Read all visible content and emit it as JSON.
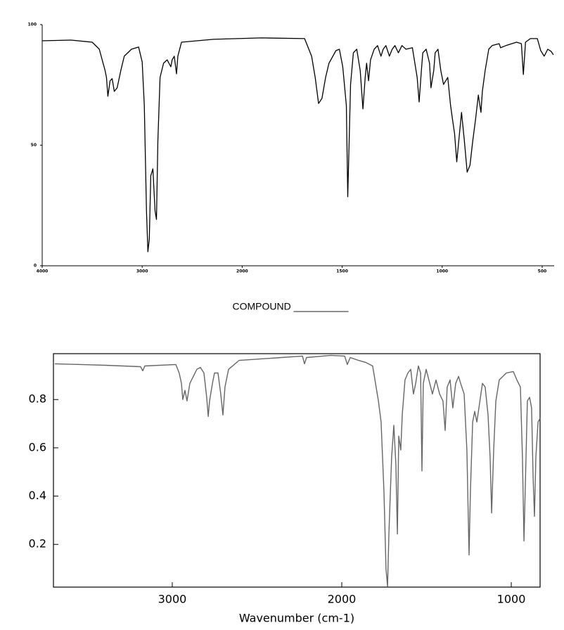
{
  "caption": "COMPOUND __________",
  "chart_data": [
    {
      "type": "line",
      "color": "#000000",
      "xlim": [
        4000,
        440
      ],
      "x_scale_break": 2000,
      "ylim": [
        0,
        100
      ],
      "xticks": [
        4000,
        3000,
        2000,
        1500,
        1000,
        500
      ],
      "yticks": [
        0,
        50,
        100
      ],
      "x": [
        4000,
        3714,
        3500,
        3429,
        3371,
        3357,
        3343,
        3321,
        3300,
        3279,
        3250,
        3214,
        3179,
        3107,
        3036,
        3000,
        2979,
        2957,
        2943,
        2929,
        2914,
        2893,
        2871,
        2857,
        2843,
        2821,
        2786,
        2750,
        2714,
        2700,
        2679,
        2657,
        2643,
        2607,
        2286,
        1902,
        1688,
        1653,
        1635,
        1618,
        1601,
        1583,
        1566,
        1531,
        1514,
        1497,
        1479,
        1472,
        1465,
        1458,
        1444,
        1427,
        1410,
        1396,
        1385,
        1378,
        1368,
        1358,
        1340,
        1323,
        1306,
        1295,
        1281,
        1264,
        1250,
        1236,
        1219,
        1201,
        1181,
        1149,
        1125,
        1115,
        1104,
        1097,
        1080,
        1063,
        1056,
        1042,
        1035,
        1021,
        1007,
        993,
        972,
        958,
        948,
        938,
        927,
        917,
        903,
        889,
        875,
        861,
        847,
        833,
        819,
        806,
        799,
        785,
        767,
        750,
        715,
        708,
        681,
        628,
        604,
        594,
        583,
        559,
        524,
        507,
        490,
        472,
        455,
        444
      ],
      "values": [
        93.3,
        93.6,
        92.7,
        89.8,
        81.0,
        78.1,
        70.3,
        76.7,
        77.6,
        72.3,
        73.8,
        81.0,
        86.9,
        89.8,
        90.7,
        84.5,
        66.5,
        22.7,
        5.8,
        11.1,
        37.3,
        40.2,
        22.7,
        19.2,
        51.9,
        78.1,
        84.0,
        85.4,
        82.5,
        85.4,
        86.9,
        79.6,
        86.9,
        92.7,
        93.9,
        94.5,
        94.2,
        86.9,
        78.1,
        67.3,
        69.4,
        78.1,
        84.0,
        89.2,
        89.8,
        82.5,
        66.5,
        28.6,
        51.9,
        75.2,
        88.3,
        89.8,
        81.0,
        65.0,
        78.1,
        84.0,
        76.7,
        85.4,
        89.8,
        91.3,
        86.9,
        89.8,
        91.3,
        86.9,
        89.8,
        91.3,
        88.3,
        91.3,
        89.8,
        90.4,
        78.1,
        67.9,
        81.0,
        88.3,
        89.8,
        84.0,
        73.8,
        81.0,
        88.3,
        89.8,
        81.0,
        75.2,
        78.1,
        66.5,
        60.6,
        54.8,
        43.1,
        51.9,
        63.6,
        51.9,
        38.8,
        41.7,
        51.9,
        60.6,
        70.8,
        63.6,
        72.3,
        81.0,
        89.8,
        91.3,
        92.1,
        90.4,
        91.3,
        92.7,
        92.1,
        79.3,
        92.7,
        94.2,
        94.2,
        89.2,
        86.9,
        89.8,
        88.9,
        87.5
      ]
    },
    {
      "type": "line",
      "color": "#666666",
      "xlabel": "Wavenumber (cm-1)",
      "xlim": [
        3701,
        830
      ],
      "ylim": [
        0.023,
        0.99
      ],
      "xticks": [
        3000,
        2000,
        1000
      ],
      "yticks": [
        0.2,
        0.4,
        0.6,
        0.8
      ],
      "x": [
        3693,
        3394,
        3187,
        3174,
        3162,
        2979,
        2959,
        2946,
        2938,
        2925,
        2913,
        2896,
        2876,
        2855,
        2834,
        2813,
        2797,
        2788,
        2780,
        2763,
        2751,
        2730,
        2714,
        2701,
        2689,
        2668,
        2606,
        2357,
        2232,
        2220,
        2208,
        2066,
        1983,
        1967,
        1950,
        1901,
        1859,
        1818,
        1784,
        1768,
        1751,
        1739,
        1730,
        1722,
        1706,
        1693,
        1681,
        1672,
        1664,
        1652,
        1643,
        1627,
        1610,
        1593,
        1577,
        1564,
        1548,
        1535,
        1527,
        1519,
        1502,
        1486,
        1465,
        1444,
        1423,
        1403,
        1390,
        1378,
        1361,
        1345,
        1328,
        1311,
        1299,
        1278,
        1262,
        1249,
        1241,
        1228,
        1216,
        1203,
        1191,
        1170,
        1154,
        1137,
        1125,
        1116,
        1104,
        1091,
        1071,
        1029,
        988,
        967,
        946,
        934,
        925,
        913,
        905,
        892,
        880,
        871,
        863,
        855,
        842,
        830
      ],
      "values": [
        0.948,
        0.942,
        0.936,
        0.919,
        0.939,
        0.945,
        0.91,
        0.867,
        0.8,
        0.838,
        0.794,
        0.867,
        0.896,
        0.925,
        0.933,
        0.91,
        0.809,
        0.73,
        0.794,
        0.867,
        0.91,
        0.91,
        0.823,
        0.736,
        0.852,
        0.925,
        0.962,
        0.974,
        0.98,
        0.948,
        0.974,
        0.983,
        0.98,
        0.945,
        0.974,
        0.962,
        0.954,
        0.939,
        0.794,
        0.707,
        0.417,
        0.098,
        0.026,
        0.243,
        0.562,
        0.693,
        0.533,
        0.243,
        0.649,
        0.591,
        0.736,
        0.881,
        0.91,
        0.925,
        0.823,
        0.867,
        0.939,
        0.91,
        0.504,
        0.867,
        0.925,
        0.881,
        0.823,
        0.881,
        0.823,
        0.794,
        0.672,
        0.852,
        0.881,
        0.765,
        0.867,
        0.896,
        0.867,
        0.823,
        0.591,
        0.156,
        0.417,
        0.707,
        0.751,
        0.707,
        0.765,
        0.867,
        0.852,
        0.736,
        0.562,
        0.33,
        0.591,
        0.794,
        0.881,
        0.91,
        0.916,
        0.881,
        0.852,
        0.562,
        0.214,
        0.562,
        0.794,
        0.809,
        0.765,
        0.475,
        0.316,
        0.562,
        0.707,
        0.722
      ]
    }
  ]
}
